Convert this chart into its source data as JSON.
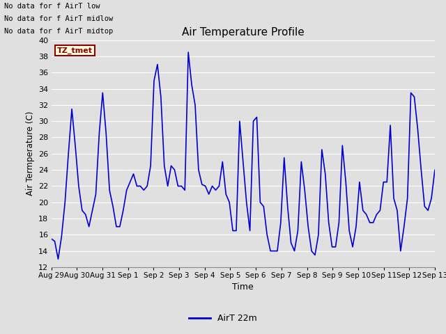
{
  "title": "Air Temperature Profile",
  "xlabel": "Time",
  "ylabel": "Air Termperature (C)",
  "ylim": [
    12,
    40
  ],
  "yticks": [
    12,
    14,
    16,
    18,
    20,
    22,
    24,
    26,
    28,
    30,
    32,
    34,
    36,
    38,
    40
  ],
  "line_color": "#0000cc",
  "line_width": 1.2,
  "background_color": "#e0e0e0",
  "plot_bg_color": "#e0e0e0",
  "grid_color": "#ffffff",
  "legend_label": "AirT 22m",
  "annotations_text": [
    "No data for f AirT low",
    "No data for f AirT midlow",
    "No data for f AirT midtop"
  ],
  "tz_label": "TZ_tmet",
  "x_tick_labels": [
    "Aug 29",
    "Aug 30",
    "Aug 31",
    "Sep 1",
    "Sep 2",
    "Sep 3",
    "Sep 4",
    "Sep 5",
    "Sep 6",
    "Sep 7",
    "Sep 8",
    "Sep 9",
    "Sep 10",
    "Sep 11",
    "Sep 12",
    "Sep 13"
  ],
  "x_tick_positions": [
    0,
    1,
    2,
    3,
    4,
    5,
    6,
    7,
    8,
    9,
    10,
    11,
    12,
    13,
    14,
    15
  ],
  "temperature_data": [
    15.5,
    15.2,
    13.0,
    15.8,
    20.0,
    26.0,
    31.5,
    27.0,
    22.0,
    19.0,
    18.5,
    17.0,
    19.0,
    21.0,
    28.5,
    33.5,
    28.5,
    21.5,
    19.5,
    17.0,
    17.0,
    19.0,
    21.5,
    22.5,
    23.5,
    22.0,
    22.0,
    21.5,
    22.0,
    24.5,
    35.0,
    37.0,
    33.0,
    24.5,
    22.0,
    24.5,
    24.0,
    22.0,
    22.0,
    21.5,
    38.5,
    34.5,
    32.0,
    24.0,
    22.2,
    22.0,
    21.0,
    22.0,
    21.5,
    22.0,
    25.0,
    21.0,
    20.0,
    16.5,
    16.5,
    30.0,
    25.0,
    20.0,
    16.5,
    30.0,
    30.5,
    20.0,
    19.5,
    16.0,
    14.0,
    14.0,
    14.0,
    17.5,
    25.5,
    19.5,
    15.0,
    14.0,
    16.5,
    25.0,
    21.5,
    17.0,
    14.0,
    13.5,
    16.0,
    26.5,
    23.5,
    17.5,
    14.5,
    14.5,
    17.5,
    27.0,
    22.5,
    16.5,
    14.5,
    17.0,
    22.5,
    19.0,
    18.5,
    17.5,
    17.5,
    18.5,
    19.0,
    22.5,
    22.5,
    29.5,
    20.5,
    19.0,
    14.0,
    17.0,
    20.5,
    33.5,
    33.0,
    29.0,
    24.0,
    19.5,
    19.0,
    20.5,
    24.0
  ]
}
